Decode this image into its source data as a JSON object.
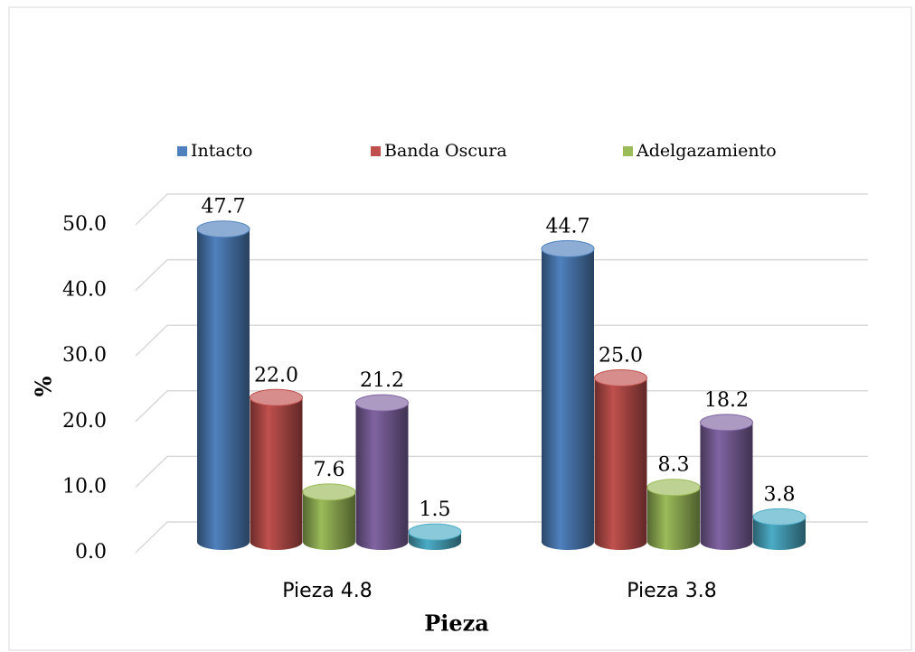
{
  "chart_data": {
    "type": "bar3d",
    "categories": [
      "Pieza 4.8",
      "Pieza 3.8"
    ],
    "x_label": "Pieza",
    "y_label": "%",
    "series": [
      {
        "name": "Intacto",
        "color": "#4f81bd",
        "values": [
          47.7,
          44.7
        ],
        "value_labels": [
          "47.7",
          "44.7"
        ]
      },
      {
        "name": "Banda Oscura",
        "color": "#c0504d",
        "values": [
          22.0,
          25.0
        ],
        "value_labels": [
          "22.0",
          "25.0"
        ]
      },
      {
        "name": "Adelgazamiento",
        "color": "#9bbb59",
        "values": [
          7.6,
          8.3
        ],
        "value_labels": [
          "7.6",
          "8.3"
        ]
      },
      {
        "color": "#8064a2",
        "values": [
          21.2,
          18.2
        ],
        "value_labels": [
          "21.2",
          "18.2"
        ]
      },
      {
        "color": "#4bacc6",
        "values": [
          1.5,
          3.8
        ],
        "value_labels": [
          "1.5",
          "3.8"
        ]
      }
    ],
    "ylim": [
      0,
      50
    ],
    "yticks": [
      {
        "value": 0,
        "label": "0.0"
      },
      {
        "value": 10,
        "label": "10.0"
      },
      {
        "value": 20,
        "label": "20.0"
      },
      {
        "value": 30,
        "label": "30.0"
      },
      {
        "value": 40,
        "label": "40.0"
      },
      {
        "value": 50,
        "label": "50.0"
      }
    ],
    "grid": true,
    "legend": "top"
  }
}
